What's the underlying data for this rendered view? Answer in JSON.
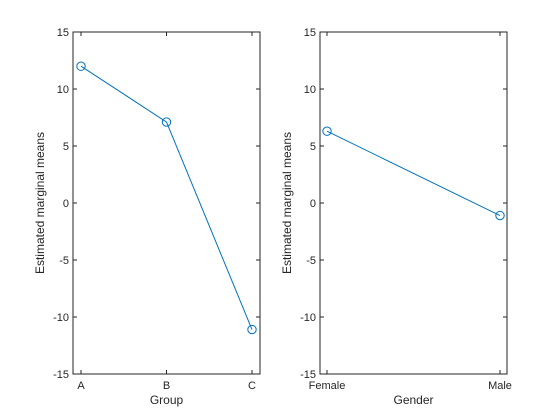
{
  "chart_data": [
    {
      "type": "line",
      "xlabel": "Group",
      "ylabel": "Estimated marginal means",
      "categories": [
        "A",
        "B",
        "C"
      ],
      "values": [
        12.0,
        7.1,
        -11.1
      ],
      "ylim": [
        -15,
        15
      ],
      "yticks": [
        15,
        10,
        5,
        0,
        -5,
        -10,
        -15
      ],
      "grid": false,
      "marker": "circle",
      "color": "#0072BD"
    },
    {
      "type": "line",
      "xlabel": "Gender",
      "ylabel": "Estimated marginal means",
      "categories": [
        "Female",
        "Male"
      ],
      "values": [
        6.3,
        -1.1
      ],
      "ylim": [
        -15,
        15
      ],
      "yticks": [
        15,
        10,
        5,
        0,
        -5,
        -10,
        -15
      ],
      "grid": false,
      "marker": "circle",
      "color": "#0072BD"
    }
  ]
}
